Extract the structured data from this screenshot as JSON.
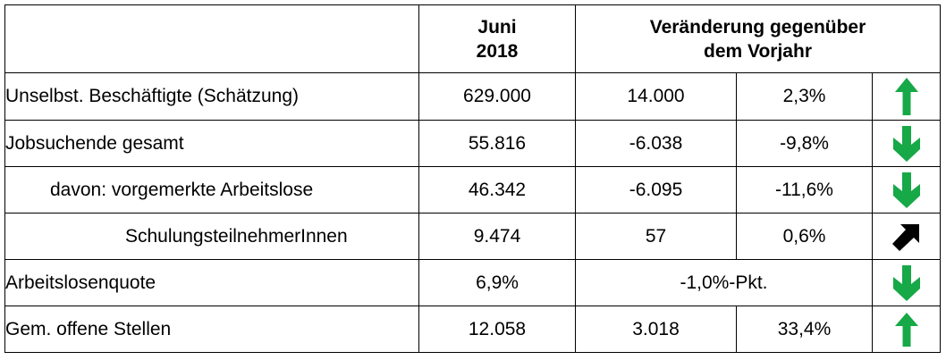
{
  "header": {
    "month_line1": "Juni",
    "month_line2": "2018",
    "change_line1": "Veränderung gegenüber",
    "change_line2": "dem Vorjahr"
  },
  "rows": [
    {
      "label": "Unselbst. Beschäftigte (Schätzung)",
      "value": "629.000",
      "change_abs": "14.000",
      "change_pct": "2,3%",
      "trend": "up",
      "trend_color": "#17a847"
    },
    {
      "label": "Jobsuchende gesamt",
      "value": "55.816",
      "change_abs": "-6.038",
      "change_pct": "-9,8%",
      "trend": "down",
      "trend_color": "#17a847"
    },
    {
      "label": "davon: vorgemerkte Arbeitslose",
      "value": "46.342",
      "change_abs": "-6.095",
      "change_pct": "-11,6%",
      "trend": "down",
      "trend_color": "#17a847"
    },
    {
      "label": "SchulungsteilnehmerInnen",
      "value": "9.474",
      "change_abs": "57",
      "change_pct": "0,6%",
      "trend": "up-right",
      "trend_color": "#000000"
    },
    {
      "label": "Arbeitslosenquote",
      "value": "6,9%",
      "change_combined": "-1,0%-Pkt.",
      "trend": "down",
      "trend_color": "#17a847"
    },
    {
      "label": "Gem. offene Stellen",
      "value": "12.058",
      "change_abs": "3.018",
      "change_pct": "33,4%",
      "trend": "up",
      "trend_color": "#17a847"
    }
  ]
}
